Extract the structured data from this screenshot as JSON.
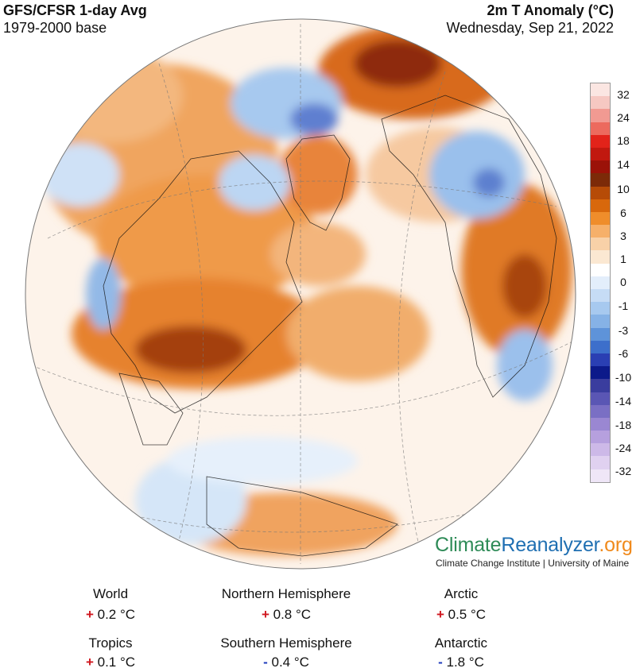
{
  "header": {
    "title_left": "GFS/CFSR 1-day Avg",
    "subtitle_left": "1979-2000 base",
    "title_right": "2m T Anomaly (°C)",
    "subtitle_right": "Wednesday, Sep 21, 2022"
  },
  "legend": {
    "labels": [
      "32",
      "24",
      "18",
      "14",
      "10",
      "6",
      "3",
      "1",
      "0",
      "-1",
      "-3",
      "-6",
      "-10",
      "-14",
      "-18",
      "-24",
      "-32"
    ],
    "colors": [
      "#fbe6e2",
      "#f6c8c2",
      "#f19a92",
      "#ec6a5e",
      "#e2231a",
      "#c1180f",
      "#9b1208",
      "#7c2a08",
      "#b64b07",
      "#d8680c",
      "#ef8d2b",
      "#f6b06a",
      "#f8d1a8",
      "#fbe8d2",
      "#ffffff",
      "#e3eefb",
      "#c6dcf5",
      "#a7c9ef",
      "#86b2e6",
      "#5e93d9",
      "#3d6fcb",
      "#2a3fb3",
      "#0c1a8a",
      "#3a3d9e",
      "#5a56b4",
      "#7a6fc4",
      "#9a87d2",
      "#b6a0de",
      "#cdb9e8",
      "#e0d1f0",
      "#efe6f7"
    ]
  },
  "brand": {
    "name_part1": "Climate",
    "name_part2": "Reanalyzer",
    "name_part3": ".org",
    "tagline": "Climate Change Institute | University of Maine"
  },
  "stats": [
    {
      "name": "World",
      "sign": "+",
      "value": "0.2 °C"
    },
    {
      "name": "Northern Hemisphere",
      "sign": "+",
      "value": "0.8 °C"
    },
    {
      "name": "Arctic",
      "sign": "+",
      "value": "0.5 °C"
    },
    {
      "name": "Tropics",
      "sign": "+",
      "value": "0.1 °C"
    },
    {
      "name": "Southern Hemisphere",
      "sign": "-",
      "value": "0.4 °C"
    },
    {
      "name": "Antarctic",
      "sign": "-",
      "value": "1.8 °C"
    }
  ]
}
